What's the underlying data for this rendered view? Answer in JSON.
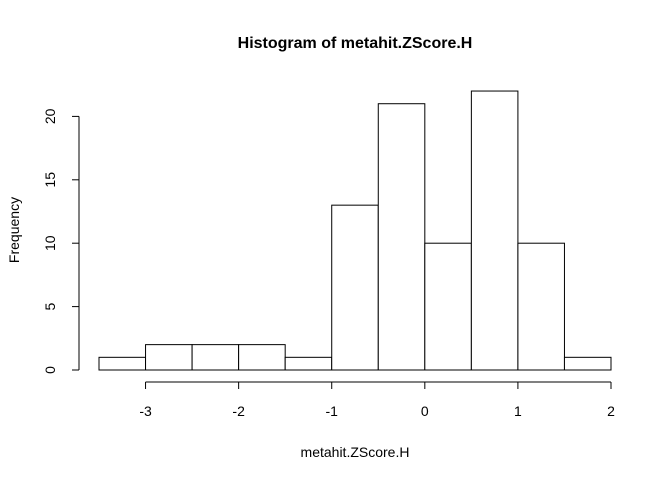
{
  "chart_data": {
    "type": "bar",
    "title": "Histogram of metahit.ZScore.H",
    "xlabel": "metahit.ZScore.H",
    "ylabel": "Frequency",
    "bins": [
      {
        "start": -3.5,
        "end": -3.0,
        "count": 1
      },
      {
        "start": -3.0,
        "end": -2.5,
        "count": 2
      },
      {
        "start": -2.5,
        "end": -2.0,
        "count": 2
      },
      {
        "start": -2.0,
        "end": -1.5,
        "count": 2
      },
      {
        "start": -1.5,
        "end": -1.0,
        "count": 1
      },
      {
        "start": -1.0,
        "end": -0.5,
        "count": 13
      },
      {
        "start": -0.5,
        "end": 0.0,
        "count": 21
      },
      {
        "start": 0.0,
        "end": 0.5,
        "count": 10
      },
      {
        "start": 0.5,
        "end": 1.0,
        "count": 22
      },
      {
        "start": 1.0,
        "end": 1.5,
        "count": 10
      },
      {
        "start": 1.5,
        "end": 2.0,
        "count": 1
      }
    ],
    "x_ticks": [
      -3,
      -2,
      -1,
      0,
      1,
      2
    ],
    "x_tick_labels": [
      "-3",
      "-2",
      "-1",
      "0",
      "1",
      "2"
    ],
    "y_ticks": [
      0,
      5,
      10,
      15,
      20
    ],
    "y_tick_labels": [
      "0",
      "5",
      "10",
      "15",
      "20"
    ],
    "xlim": [
      -3.5,
      2.0
    ],
    "ylim": [
      0,
      22
    ],
    "grid": false,
    "legend": "none",
    "colors": {
      "bar_fill": "#ffffff",
      "bar_stroke": "#000000"
    }
  }
}
